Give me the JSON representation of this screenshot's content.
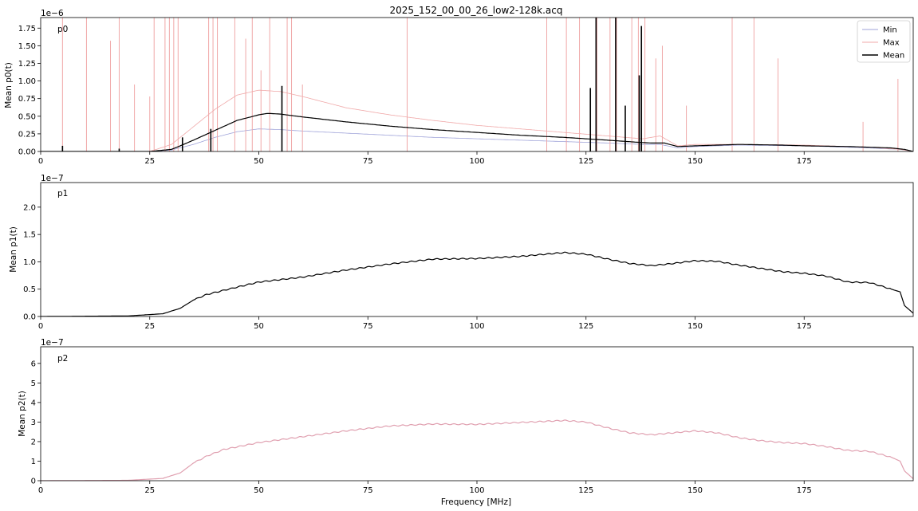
{
  "title": "2025_152_00_00_26_low2-128k.acq",
  "xlabel": "Frequency [MHz]",
  "chart_data": [
    {
      "type": "line",
      "panel_label": "p0",
      "ylabel": "Mean p0(t)",
      "offset_text": "1e−6",
      "scale": 1e-06,
      "xlim": [
        0,
        200
      ],
      "ylim": [
        0,
        1.9
      ],
      "xticks": [
        0,
        25,
        50,
        75,
        100,
        125,
        150,
        175
      ],
      "yticks": [
        0.0,
        0.25,
        0.5,
        0.75,
        1.0,
        1.25,
        1.5,
        1.75
      ],
      "ytick_labels": [
        "0.00",
        "0.25",
        "0.50",
        "0.75",
        "1.00",
        "1.25",
        "1.50",
        "1.75"
      ],
      "legend": {
        "placement": "top-right",
        "entries": [
          "Min",
          "Max",
          "Mean"
        ]
      },
      "series": [
        {
          "name": "Min",
          "color": "#9fa3d9",
          "x": [
            0,
            25,
            30,
            35,
            40,
            45,
            50,
            55,
            60,
            70,
            80,
            90,
            100,
            110,
            120,
            130,
            138,
            142,
            146,
            150,
            160,
            175,
            190,
            197,
            200
          ],
          "values": [
            0.0,
            0.0,
            0.02,
            0.1,
            0.2,
            0.28,
            0.32,
            0.31,
            0.29,
            0.26,
            0.23,
            0.2,
            0.18,
            0.16,
            0.14,
            0.12,
            0.1,
            0.1,
            0.05,
            0.07,
            0.09,
            0.08,
            0.05,
            0.03,
            0.0
          ]
        },
        {
          "name": "Max",
          "color": "#f0a8a8",
          "x": [
            0,
            25,
            30,
            35,
            40,
            45,
            50,
            55,
            60,
            70,
            80,
            90,
            100,
            110,
            120,
            130,
            138,
            142,
            146,
            150,
            160,
            175,
            190,
            197,
            200
          ],
          "values": [
            0.0,
            0.0,
            0.1,
            0.35,
            0.6,
            0.8,
            0.87,
            0.85,
            0.78,
            0.62,
            0.52,
            0.44,
            0.37,
            0.32,
            0.27,
            0.22,
            0.18,
            0.22,
            0.08,
            0.1,
            0.1,
            0.09,
            0.06,
            0.03,
            0.0
          ],
          "spikes": [
            [
              5,
              1.9
            ],
            [
              10.5,
              1.9
            ],
            [
              16,
              1.57
            ],
            [
              18,
              1.9
            ],
            [
              21.5,
              0.95
            ],
            [
              25,
              0.78
            ],
            [
              26,
              1.9
            ],
            [
              28.5,
              1.9
            ],
            [
              29.5,
              1.9
            ],
            [
              30.5,
              1.9
            ],
            [
              31.5,
              1.9
            ],
            [
              38.5,
              1.9
            ],
            [
              39.5,
              1.9
            ],
            [
              40.5,
              1.9
            ],
            [
              44.5,
              1.9
            ],
            [
              47,
              1.6
            ],
            [
              48.5,
              1.9
            ],
            [
              50.5,
              1.15
            ],
            [
              52.5,
              1.9
            ],
            [
              56.5,
              1.9
            ],
            [
              57.5,
              1.9
            ],
            [
              60,
              0.95
            ],
            [
              84,
              1.9
            ],
            [
              116,
              1.9
            ],
            [
              120.5,
              1.9
            ],
            [
              123.5,
              1.9
            ],
            [
              127.5,
              1.9
            ],
            [
              130.5,
              1.9
            ],
            [
              132,
              1.9
            ],
            [
              135.5,
              1.9
            ],
            [
              137,
              1.9
            ],
            [
              138.5,
              1.9
            ],
            [
              141,
              1.32
            ],
            [
              142.5,
              1.5
            ],
            [
              148,
              0.65
            ],
            [
              158.5,
              1.9
            ],
            [
              163.5,
              1.9
            ],
            [
              169,
              1.32
            ],
            [
              188.5,
              0.42
            ],
            [
              196.5,
              1.03
            ]
          ]
        },
        {
          "name": "Mean",
          "color": "#000000",
          "x": [
            0,
            25,
            30,
            32,
            35,
            40,
            45,
            50,
            52,
            55,
            60,
            70,
            80,
            90,
            100,
            110,
            120,
            130,
            137,
            140,
            143,
            146,
            150,
            155,
            160,
            170,
            175,
            185,
            195,
            198,
            200
          ],
          "values": [
            0.0,
            0.0,
            0.03,
            0.08,
            0.16,
            0.3,
            0.44,
            0.52,
            0.54,
            0.53,
            0.49,
            0.42,
            0.36,
            0.31,
            0.27,
            0.23,
            0.2,
            0.16,
            0.13,
            0.12,
            0.12,
            0.07,
            0.08,
            0.09,
            0.1,
            0.09,
            0.08,
            0.07,
            0.05,
            0.03,
            0.0
          ],
          "spikes": [
            [
              5,
              0.08
            ],
            [
              18,
              0.04
            ],
            [
              32.5,
              0.2
            ],
            [
              39,
              0.32
            ],
            [
              55.3,
              0.93
            ],
            [
              126,
              0.9
            ],
            [
              127.3,
              1.9
            ],
            [
              131.8,
              1.9
            ],
            [
              134,
              0.65
            ],
            [
              137.2,
              1.08
            ],
            [
              137.7,
              1.78
            ]
          ]
        }
      ]
    },
    {
      "type": "line",
      "panel_label": "p1",
      "ylabel": "Mean p1(t)",
      "offset_text": "1e−7",
      "scale": 1e-07,
      "xlim": [
        0,
        200
      ],
      "ylim": [
        0,
        2.45
      ],
      "xticks": [
        0,
        25,
        50,
        75,
        100,
        125,
        150,
        175
      ],
      "yticks": [
        0.0,
        0.5,
        1.0,
        1.5,
        2.0
      ],
      "ytick_labels": [
        "0.0",
        "0.5",
        "1.0",
        "1.5",
        "2.0"
      ],
      "series": [
        {
          "color": "#000000",
          "x": [
            0,
            20,
            28,
            32,
            35,
            38,
            42,
            50,
            60,
            70,
            80,
            90,
            100,
            110,
            120,
            125,
            130,
            135,
            140,
            145,
            150,
            155,
            160,
            165,
            170,
            175,
            180,
            185,
            190,
            195,
            197,
            198,
            200
          ],
          "values": [
            0.0,
            0.01,
            0.05,
            0.15,
            0.3,
            0.4,
            0.48,
            0.63,
            0.72,
            0.85,
            0.96,
            1.05,
            1.06,
            1.1,
            1.17,
            1.14,
            1.05,
            0.97,
            0.93,
            0.97,
            1.02,
            1.01,
            0.94,
            0.88,
            0.82,
            0.79,
            0.74,
            0.63,
            0.62,
            0.5,
            0.45,
            0.2,
            0.06
          ]
        }
      ]
    },
    {
      "type": "line",
      "panel_label": "p2",
      "ylabel": "Mean p2(t)",
      "offset_text": "1e−7",
      "scale": 1e-07,
      "xlim": [
        0,
        200
      ],
      "ylim": [
        0,
        6.85
      ],
      "xticks": [
        0,
        25,
        50,
        75,
        100,
        125,
        150,
        175
      ],
      "yticks": [
        0,
        1,
        2,
        3,
        4,
        5,
        6
      ],
      "ytick_labels": [
        "0",
        "1",
        "2",
        "3",
        "4",
        "5",
        "6"
      ],
      "series": [
        {
          "color": "#e0a0b0",
          "x": [
            0,
            20,
            28,
            32,
            35,
            38,
            42,
            50,
            60,
            70,
            80,
            90,
            100,
            110,
            120,
            125,
            130,
            135,
            140,
            145,
            150,
            155,
            160,
            165,
            170,
            175,
            180,
            185,
            190,
            195,
            197,
            198,
            200
          ],
          "values": [
            0.0,
            0.02,
            0.12,
            0.4,
            0.9,
            1.25,
            1.6,
            1.95,
            2.25,
            2.55,
            2.8,
            2.9,
            2.88,
            2.98,
            3.08,
            3.0,
            2.7,
            2.45,
            2.35,
            2.45,
            2.55,
            2.45,
            2.2,
            2.05,
            1.95,
            1.9,
            1.75,
            1.55,
            1.5,
            1.2,
            1.0,
            0.5,
            0.1
          ]
        }
      ]
    }
  ]
}
